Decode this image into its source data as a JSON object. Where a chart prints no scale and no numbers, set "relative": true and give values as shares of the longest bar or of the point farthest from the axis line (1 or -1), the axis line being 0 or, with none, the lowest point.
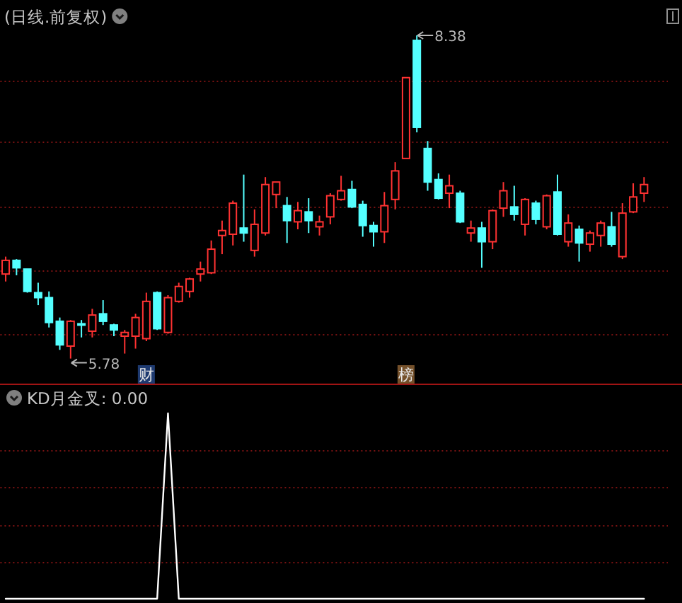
{
  "chart_data": [
    {
      "type": "candlestick",
      "title": "(日线.前复权)",
      "categories": [
        null,
        null,
        null,
        null,
        null,
        null,
        null,
        null,
        null,
        null,
        null,
        null,
        null,
        null,
        null,
        null,
        null,
        null,
        null,
        null,
        null,
        null,
        null,
        null,
        null,
        null,
        null,
        null,
        null,
        null,
        null,
        null,
        null,
        null,
        null,
        null,
        null,
        null,
        null,
        null,
        null,
        null,
        null,
        null,
        null,
        null,
        null,
        null,
        null,
        null,
        null,
        null,
        null,
        null,
        null,
        null,
        null,
        null,
        null,
        null
      ],
      "ohlc": [
        [
          6.46,
          6.6,
          6.4,
          6.57
        ],
        [
          6.57,
          6.58,
          6.45,
          6.51
        ],
        [
          6.5,
          6.5,
          6.31,
          6.32
        ],
        [
          6.31,
          6.39,
          6.21,
          6.27
        ],
        [
          6.27,
          6.32,
          6.03,
          6.07
        ],
        [
          6.08,
          6.11,
          5.85,
          5.89
        ],
        [
          5.88,
          6.09,
          5.78,
          6.08
        ],
        [
          6.06,
          6.09,
          5.95,
          6.05
        ],
        [
          6.0,
          6.18,
          5.95,
          6.13
        ],
        [
          6.14,
          6.25,
          6.05,
          6.08
        ],
        [
          6.05,
          6.06,
          5.96,
          6.01
        ],
        [
          5.96,
          6.01,
          5.82,
          5.99
        ],
        [
          5.96,
          6.14,
          5.86,
          6.11
        ],
        [
          5.94,
          6.31,
          5.92,
          6.24
        ],
        [
          6.31,
          6.32,
          6.01,
          6.02
        ],
        [
          5.99,
          6.29,
          5.98,
          6.27
        ],
        [
          6.24,
          6.39,
          6.23,
          6.36
        ],
        [
          6.32,
          6.43,
          6.27,
          6.42
        ],
        [
          6.46,
          6.56,
          6.4,
          6.5
        ],
        [
          6.47,
          6.73,
          6.46,
          6.66
        ],
        [
          6.77,
          6.89,
          6.62,
          6.81
        ],
        [
          6.78,
          7.05,
          6.69,
          7.03
        ],
        [
          6.83,
          7.26,
          6.72,
          6.79
        ],
        [
          6.65,
          6.98,
          6.6,
          6.86
        ],
        [
          6.79,
          7.24,
          6.77,
          7.18
        ],
        [
          7.1,
          7.2,
          6.99,
          7.2
        ],
        [
          7.01,
          7.08,
          6.71,
          6.89
        ],
        [
          6.88,
          7.04,
          6.82,
          6.97
        ],
        [
          6.96,
          7.07,
          6.79,
          6.89
        ],
        [
          6.84,
          6.93,
          6.77,
          6.88
        ],
        [
          6.92,
          7.11,
          6.86,
          7.09
        ],
        [
          7.06,
          7.25,
          7.05,
          7.13
        ],
        [
          7.14,
          7.21,
          6.99,
          7.0
        ],
        [
          7.02,
          7.05,
          6.76,
          6.85
        ],
        [
          6.85,
          6.88,
          6.68,
          6.8
        ],
        [
          6.8,
          7.12,
          6.71,
          7.01
        ],
        [
          7.06,
          7.36,
          6.98,
          7.29
        ],
        [
          7.39,
          8.04,
          7.39,
          8.04
        ],
        [
          8.34,
          8.38,
          7.6,
          7.64
        ],
        [
          7.47,
          7.53,
          7.13,
          7.2
        ],
        [
          7.22,
          7.27,
          7.06,
          7.07
        ],
        [
          7.11,
          7.26,
          6.99,
          7.17
        ],
        [
          7.11,
          7.13,
          6.87,
          6.88
        ],
        [
          6.79,
          6.89,
          6.72,
          6.83
        ],
        [
          6.83,
          6.88,
          6.51,
          6.72
        ],
        [
          6.72,
          6.98,
          6.66,
          6.97
        ],
        [
          6.99,
          7.2,
          6.92,
          7.13
        ],
        [
          7.0,
          7.17,
          6.89,
          6.94
        ],
        [
          6.86,
          7.07,
          6.77,
          7.06
        ],
        [
          7.03,
          7.05,
          6.86,
          6.9
        ],
        [
          6.84,
          7.1,
          6.82,
          7.09
        ],
        [
          7.12,
          7.26,
          6.77,
          6.78
        ],
        [
          6.72,
          6.94,
          6.68,
          6.87
        ],
        [
          6.82,
          6.85,
          6.56,
          6.71
        ],
        [
          6.7,
          6.81,
          6.64,
          6.79
        ],
        [
          6.77,
          6.89,
          6.68,
          6.87
        ],
        [
          6.84,
          6.96,
          6.68,
          6.7
        ],
        [
          6.6,
          7.03,
          6.58,
          6.95
        ],
        [
          6.96,
          7.19,
          6.95,
          7.08
        ],
        [
          7.11,
          7.24,
          7.04,
          7.18
        ]
      ],
      "colors": [
        "#ff3232",
        "#54ffff",
        "#54ffff",
        "#54ffff",
        "#54ffff",
        "#54ffff",
        "#ff3232",
        "#54ffff",
        "#ff3232",
        "#54ffff",
        "#54ffff",
        "#ff3232",
        "#ff3232",
        "#ff3232",
        "#54ffff",
        "#ff3232",
        "#ff3232",
        "#ff3232",
        "#ff3232",
        "#ff3232",
        "#ff3232",
        "#ff3232",
        "#54ffff",
        "#ff3232",
        "#ff3232",
        "#ff3232",
        "#54ffff",
        "#ff3232",
        "#54ffff",
        "#ff3232",
        "#ff3232",
        "#ff3232",
        "#54ffff",
        "#54ffff",
        "#54ffff",
        "#ff3232",
        "#ff3232",
        "#ff3232",
        "#54ffff",
        "#54ffff",
        "#54ffff",
        "#ff3232",
        "#54ffff",
        "#ff3232",
        "#54ffff",
        "#ff3232",
        "#ff3232",
        "#54ffff",
        "#ff3232",
        "#54ffff",
        "#ff3232",
        "#54ffff",
        "#ff3232",
        "#54ffff",
        "#ff3232",
        "#ff3232",
        "#54ffff",
        "#ff3232",
        "#ff3232",
        "#ff3232"
      ],
      "ref_lines": [
        {
          "axis": "y",
          "value": 8.02,
          "color": "#781212",
          "line_style": "dotted"
        },
        {
          "axis": "y",
          "value": 7.53,
          "color": "#781212",
          "line_style": "dotted"
        },
        {
          "axis": "y",
          "value": 7.0,
          "color": "#781212",
          "line_style": "dotted"
        },
        {
          "axis": "y",
          "value": 6.49,
          "color": "#781212",
          "line_style": "dotted"
        },
        {
          "axis": "y",
          "value": 5.98,
          "color": "#781212",
          "line_style": "dotted"
        }
      ],
      "annotations": [
        "8.38",
        "5.78",
        "财",
        "榜"
      ]
    },
    {
      "type": "line",
      "title": "KD月金叉: 0.00",
      "relative": true,
      "categories": [
        null,
        null,
        null,
        null,
        null,
        null,
        null,
        null,
        null,
        null,
        null,
        null,
        null,
        null,
        null,
        null,
        null,
        null,
        null,
        null,
        null,
        null,
        null,
        null,
        null,
        null,
        null,
        null,
        null,
        null,
        null,
        null,
        null,
        null,
        null,
        null,
        null,
        null,
        null,
        null,
        null,
        null,
        null,
        null,
        null,
        null,
        null,
        null,
        null,
        null,
        null,
        null,
        null,
        null,
        null,
        null,
        null,
        null,
        null,
        null
      ],
      "series": [
        {
          "color": "#ffffff",
          "values": [
            0,
            0,
            0,
            0,
            0,
            0,
            0,
            0,
            0,
            0,
            0,
            0,
            0,
            0,
            0,
            1,
            0,
            0,
            0,
            0,
            0,
            0,
            0,
            0,
            0,
            0,
            0,
            0,
            0,
            0,
            0,
            0,
            0,
            0,
            0,
            0,
            0,
            0,
            0,
            0,
            0,
            0,
            0,
            0,
            0,
            0,
            0,
            0,
            0,
            0,
            0,
            0,
            0,
            0,
            0,
            0,
            0,
            0,
            0,
            0
          ]
        }
      ],
      "ref_lines": [
        {
          "axis": "y",
          "value": 0.8,
          "color": "#781212",
          "line_style": "dotted"
        },
        {
          "axis": "y",
          "value": 0.6,
          "color": "#781212",
          "line_style": "dotted"
        },
        {
          "axis": "y",
          "value": 0.4,
          "color": "#781212",
          "line_style": "dotted"
        },
        {
          "axis": "y",
          "value": 0.2,
          "color": "#781212",
          "line_style": "dotted"
        }
      ]
    }
  ]
}
